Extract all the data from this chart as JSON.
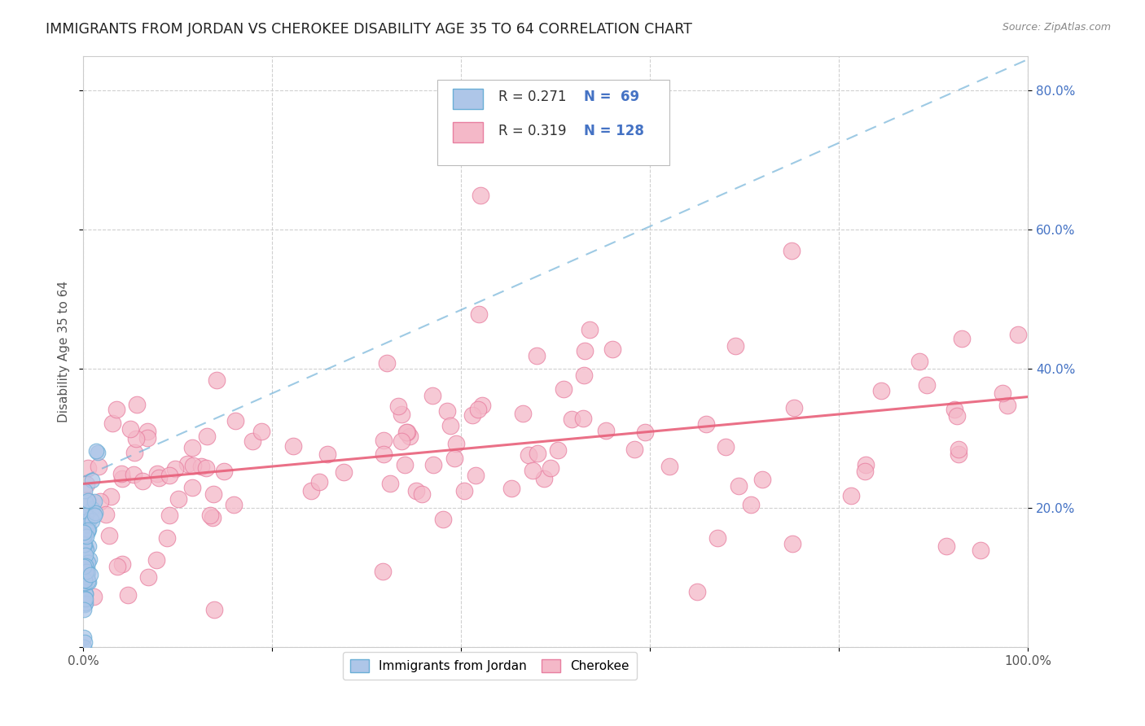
{
  "title": "IMMIGRANTS FROM JORDAN VS CHEROKEE DISABILITY AGE 35 TO 64 CORRELATION CHART",
  "source": "Source: ZipAtlas.com",
  "ylabel": "Disability Age 35 to 64",
  "xlim": [
    0,
    1.0
  ],
  "ylim": [
    0,
    0.85
  ],
  "color_jordan_fill": "#aec6e8",
  "color_jordan_edge": "#6aaed6",
  "color_cherokee_fill": "#f4b8c8",
  "color_cherokee_edge": "#e87fa0",
  "color_jordan_trendline": "#6aaed6",
  "color_cherokee_trendline": "#e8607a",
  "color_grid": "#d0d0d0",
  "color_ytick": "#4472c4",
  "color_xtick": "#555555",
  "legend_text_color": "#4472c4",
  "legend_r_color": "#333333",
  "jordan_trend_intercept": 0.245,
  "jordan_trend_slope": 0.6,
  "cherokee_trend_intercept": 0.235,
  "cherokee_trend_slope": 0.125
}
